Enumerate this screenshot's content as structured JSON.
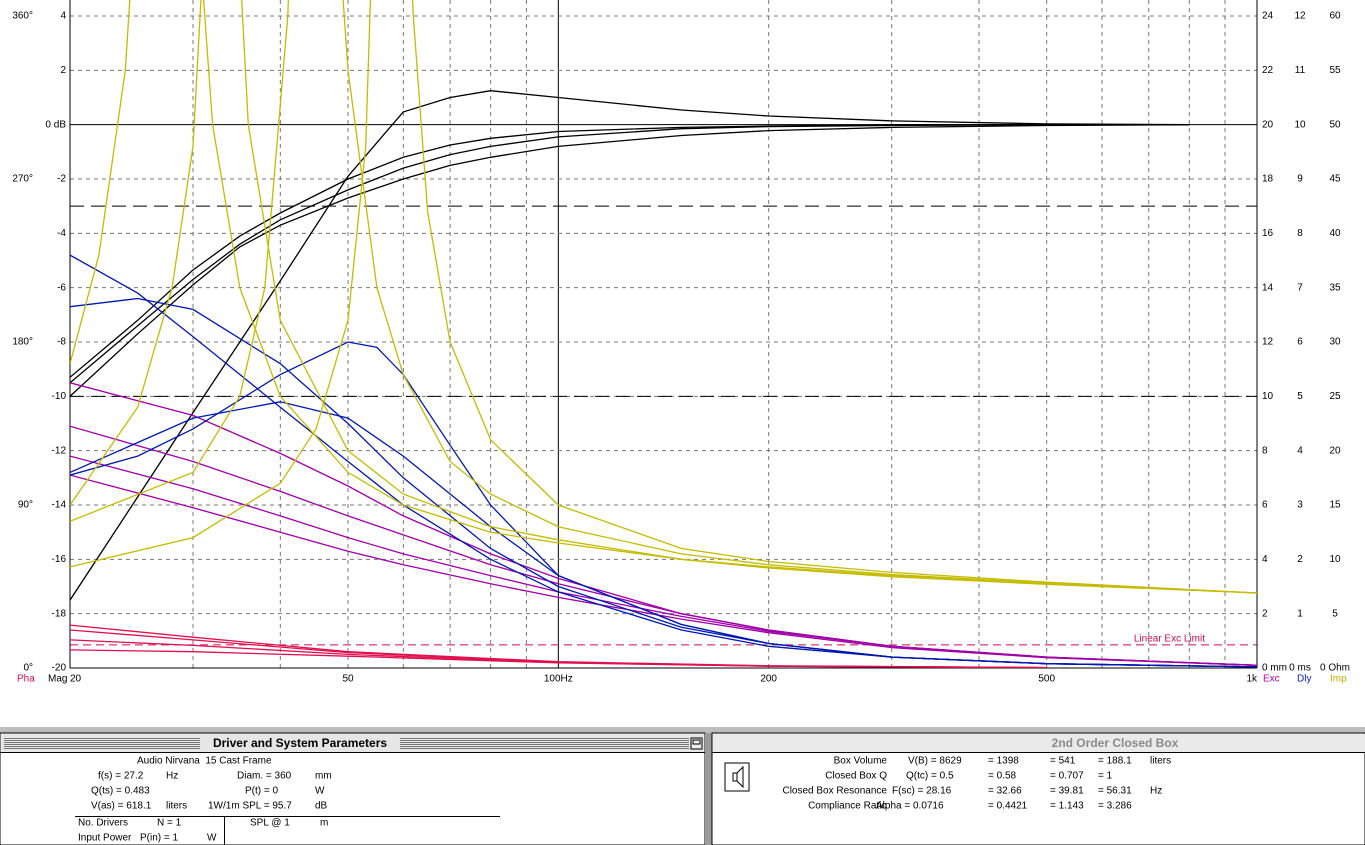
{
  "chart_data": {
    "type": "line",
    "x_scale": "log",
    "xlim": [
      20,
      1000
    ],
    "xticks": [
      20,
      50,
      {
        "value": 100,
        "label": "100Hz"
      },
      200,
      500,
      {
        "value": 1000,
        "label": "1k"
      }
    ],
    "xminor": [
      30,
      40,
      60,
      70,
      80,
      90,
      300,
      400,
      600,
      700,
      800,
      900
    ],
    "solid_x": [
      100
    ],
    "axes": [
      {
        "label": "Pha",
        "side": "left",
        "label_color": "#d0105a",
        "lim": [
          0,
          360
        ],
        "ticks": [
          {
            "value": 360,
            "label": "360°"
          },
          {
            "value": 270,
            "label": "270°"
          },
          {
            "value": 180,
            "label": "180°"
          },
          {
            "value": 90,
            "label": "90°"
          },
          {
            "value": 0,
            "label": "0°"
          }
        ],
        "series": [
          {
            "color": "#e0104e",
            "x": [
              20,
              30,
              50,
              100,
              200,
              500
            ],
            "values": [
              23.7,
              17,
              9,
              3.5,
              1.2,
              0.2
            ]
          },
          {
            "color": "#e0104e",
            "x": [
              20,
              30,
              50,
              100,
              200,
              500
            ],
            "values": [
              21,
              15.5,
              8.5,
              3.3,
              1.1,
              0.2
            ]
          },
          {
            "color": "#e0104e",
            "x": [
              20,
              30,
              50,
              100,
              200,
              500
            ],
            "values": [
              15.5,
              12.5,
              7.5,
              3.0,
              1.0,
              0.2
            ]
          },
          {
            "color": "#e0104e",
            "x": [
              20,
              30,
              50,
              100,
              200,
              500
            ],
            "values": [
              10,
              9,
              6.5,
              2.8,
              1.0,
              0.2
            ]
          }
        ]
      },
      {
        "label": "Mag",
        "side": "left",
        "label_color": "#000000",
        "lim": [
          -20,
          4
        ],
        "ticks": [
          4,
          2,
          {
            "value": 0,
            "label": "0 dB"
          },
          -2,
          -4,
          -6,
          -8,
          -10,
          -12,
          -14,
          -16,
          -18,
          -20
        ],
        "grid": true,
        "solid_y": [
          0
        ],
        "ref_lines": [
          -3,
          -10
        ],
        "series": [
          {
            "color": "#000000",
            "x": [
              20,
              25,
              30,
              35,
              40,
              50,
              60,
              70,
              80,
              100,
              150,
              200,
              300,
              500,
              800
            ],
            "values": [
              -17.5,
              -13.7,
              -10.6,
              -8.0,
              -5.75,
              -1.9,
              0.47,
              1.0,
              1.25,
              1.0,
              0.54,
              0.32,
              0.14,
              0.03,
              0
            ]
          },
          {
            "color": "#000000",
            "x": [
              20,
              25,
              30,
              35,
              40,
              50,
              60,
              70,
              80,
              100,
              150,
              200,
              300,
              500,
              800
            ],
            "values": [
              -9.5,
              -7.4,
              -5.7,
              -4.4,
              -3.5,
              -2.4,
              -1.6,
              -1.1,
              -0.8,
              -0.45,
              -0.15,
              -0.07,
              -0.03,
              0,
              0
            ]
          },
          {
            "color": "#000000",
            "x": [
              20,
              25,
              30,
              35,
              40,
              50,
              60,
              70,
              80,
              100,
              150,
              200,
              300,
              500,
              800
            ],
            "values": [
              -9.3,
              -7.2,
              -5.35,
              -4.1,
              -3.25,
              -2.0,
              -1.2,
              -0.75,
              -0.5,
              -0.25,
              -0.1,
              -0.05,
              0,
              0,
              0
            ]
          },
          {
            "color": "#000000",
            "x": [
              20,
              25,
              30,
              35,
              40,
              50,
              60,
              70,
              80,
              100,
              150,
              200,
              300,
              500,
              800
            ],
            "values": [
              -10.0,
              -7.7,
              -5.9,
              -4.5,
              -3.7,
              -2.7,
              -2.0,
              -1.5,
              -1.2,
              -0.8,
              -0.4,
              -0.22,
              -0.1,
              -0.03,
              0
            ]
          }
        ]
      },
      {
        "label": "Exc",
        "side": "right",
        "label_color": "#b000b0",
        "lim": [
          0,
          24
        ],
        "ticks": [
          24,
          22,
          20,
          18,
          16,
          14,
          12,
          10,
          8,
          6,
          4,
          2,
          {
            "value": 0,
            "label": "0 mm"
          }
        ],
        "limit_line": {
          "value": 0.85,
          "label": "Linear Exc Limit",
          "color": "#c8104a"
        },
        "series": [
          {
            "color": "#a000a8",
            "x": [
              20,
              30,
              40,
              50,
              60,
              80,
              100,
              150,
              200,
              300,
              500,
              1000
            ],
            "values": [
              10.5,
              9.3,
              7.9,
              6.7,
              5.6,
              4.2,
              3.3,
              2.0,
              1.4,
              0.8,
              0.4,
              0.1
            ]
          },
          {
            "color": "#a000a8",
            "x": [
              20,
              30,
              40,
              50,
              60,
              80,
              100,
              150,
              200,
              300,
              500,
              1000
            ],
            "values": [
              8.9,
              7.6,
              6.5,
              5.6,
              4.9,
              3.8,
              3.1,
              2.0,
              1.4,
              0.8,
              0.4,
              0.1
            ]
          },
          {
            "color": "#a000a8",
            "x": [
              20,
              30,
              40,
              50,
              60,
              80,
              100,
              150,
              200,
              300,
              500,
              1000
            ],
            "values": [
              7.8,
              6.6,
              5.6,
              4.8,
              4.2,
              3.4,
              2.8,
              1.9,
              1.35,
              0.8,
              0.4,
              0.1
            ]
          },
          {
            "color": "#a000a8",
            "x": [
              20,
              30,
              40,
              50,
              60,
              80,
              100,
              150,
              200,
              300,
              500,
              1000
            ],
            "values": [
              7.1,
              5.9,
              5.0,
              4.3,
              3.8,
              3.1,
              2.6,
              1.8,
              1.3,
              0.75,
              0.38,
              0.1
            ]
          }
        ]
      },
      {
        "label": "Dly",
        "side": "right",
        "label_color": "#1020c0",
        "lim": [
          0,
          12
        ],
        "ticks": [
          12,
          11,
          10,
          9,
          8,
          7,
          6,
          5,
          4,
          3,
          2,
          1,
          {
            "value": 0,
            "label": "0 ms"
          }
        ],
        "series": [
          {
            "color": "#0018b0",
            "x": [
              20,
              25,
              30,
              40,
              50,
              60,
              80,
              100,
              150,
              200,
              300,
              500,
              1000
            ],
            "values": [
              7.6,
              6.9,
              6.1,
              4.8,
              3.8,
              3.0,
              2.0,
              1.4,
              0.7,
              0.4,
              0.2,
              0.08,
              0.02
            ]
          },
          {
            "color": "#0018b0",
            "x": [
              20,
              25,
              30,
              40,
              50,
              60,
              80,
              100,
              150,
              200,
              300,
              500,
              1000
            ],
            "values": [
              6.65,
              6.8,
              6.6,
              5.6,
              4.5,
              3.5,
              2.2,
              1.5,
              0.75,
              0.45,
              0.2,
              0.08,
              0.02
            ]
          },
          {
            "color": "#0018b0",
            "x": [
              20,
              25,
              30,
              40,
              50,
              55,
              60,
              70,
              80,
              100,
              150,
              200,
              300,
              500,
              1000
            ],
            "values": [
              3.55,
              3.9,
              4.4,
              5.4,
              6.0,
              5.9,
              5.4,
              4.1,
              3.0,
              1.7,
              0.8,
              0.45,
              0.2,
              0.08,
              0.02
            ]
          },
          {
            "color": "#0018b0",
            "x": [
              20,
              30,
              40,
              50,
              60,
              80,
              100,
              150,
              200,
              300,
              500,
              1000
            ],
            "values": [
              3.6,
              4.6,
              4.9,
              4.6,
              3.9,
              2.6,
              1.7,
              0.8,
              0.45,
              0.2,
              0.08,
              0.02
            ]
          }
        ]
      },
      {
        "label": "Imp",
        "side": "right",
        "label_color": "#c0b000",
        "lim": [
          0,
          60
        ],
        "ticks": [
          60,
          55,
          50,
          45,
          40,
          35,
          30,
          25,
          20,
          15,
          10,
          5,
          {
            "value": 0,
            "label": "0 Ohm"
          }
        ],
        "series": [
          {
            "color": "#c4bc00",
            "x": [
              20,
              22,
              24,
              26,
              27,
              28,
              29,
              30,
              32,
              35,
              40,
              50,
              60,
              80,
              100,
              150,
              200,
              300,
              500,
              1000
            ],
            "values": [
              28,
              38,
              55,
              90,
              115,
              120,
              100,
              75,
              50,
              35,
              25,
              18,
              15,
              12.5,
              11.5,
              10,
              9.3,
              8.5,
              7.8,
              6.9
            ]
          },
          {
            "color": "#c4bc00",
            "x": [
              20,
              25,
              28,
              30,
              31,
              32,
              33,
              34,
              36,
              40,
              50,
              60,
              80,
              100,
              150,
              200,
              300,
              500,
              1000
            ],
            "values": [
              15,
              24,
              35,
              48,
              65,
              100,
              110,
              80,
              50,
              32,
              20,
              16,
              13,
              11.8,
              10,
              9.2,
              8.4,
              7.7,
              6.9
            ]
          },
          {
            "color": "#c4bc00",
            "x": [
              20,
              30,
              35,
              38,
              41,
              43,
              45,
              47,
              50,
              55,
              60,
              70,
              80,
              100,
              150,
              200,
              300,
              500,
              1000
            ],
            "values": [
              13.5,
              18,
              25,
              35,
              60,
              100,
              110,
              80,
              55,
              35,
              27,
              19,
              16,
              13,
              10.5,
              9.5,
              8.6,
              7.8,
              6.9
            ]
          },
          {
            "color": "#c4bc00",
            "x": [
              20,
              30,
              40,
              45,
              50,
              53,
              55,
              57,
              59,
              62,
              65,
              70,
              80,
              100,
              150,
              200,
              300,
              500,
              1000
            ],
            "values": [
              9.3,
              12,
              17,
              22,
              32,
              48,
              80,
              110,
              90,
              60,
              42,
              30,
              21,
              15,
              11,
              9.8,
              8.8,
              7.9,
              6.9
            ]
          }
        ]
      }
    ]
  },
  "driver_panel": {
    "title": "Driver and System Parameters",
    "driver": "Audio Nirvana  15 Cast Frame",
    "fs": "f(s) = 27.2",
    "fs_unit": "Hz",
    "diam": "Diam. = 360",
    "diam_unit": "mm",
    "qts": "Q(ts) = 0.483",
    "pt": "P(t) = 0",
    "pt_unit": "W",
    "vas": "V(as) = 618.1",
    "vas_unit": "liters",
    "spl": "1W/1m SPL = 95.7",
    "spl_unit": "dB",
    "drivers_label": "No. Drivers",
    "drivers": "N = 1",
    "spl_at": "SPL @ 1",
    "spl_at_unit": "m",
    "power_label": "Input Power",
    "power": "P(in) = 1",
    "power_unit": "W"
  },
  "box_panel": {
    "title": "2nd Order Closed Box",
    "rows": [
      {
        "label": "Box Volume",
        "values": [
          "V(B) = 8629",
          "= 1398",
          "= 541",
          "= 188.1"
        ],
        "unit": "liters"
      },
      {
        "label": "Closed Box Q",
        "values": [
          "Q(tc) = 0.5",
          "= 0.58",
          "= 0.707",
          "= 1"
        ]
      },
      {
        "label": "Closed Box Resonance",
        "values": [
          "F(sc) = 28.16",
          "= 32.66",
          "= 39.81",
          "= 56.31"
        ],
        "unit": "Hz"
      },
      {
        "label": "Compliance Ratio",
        "values": [
          "Alpha = 0.0716",
          "= 0.4421",
          "= 1.143",
          "= 3.286"
        ]
      }
    ]
  }
}
